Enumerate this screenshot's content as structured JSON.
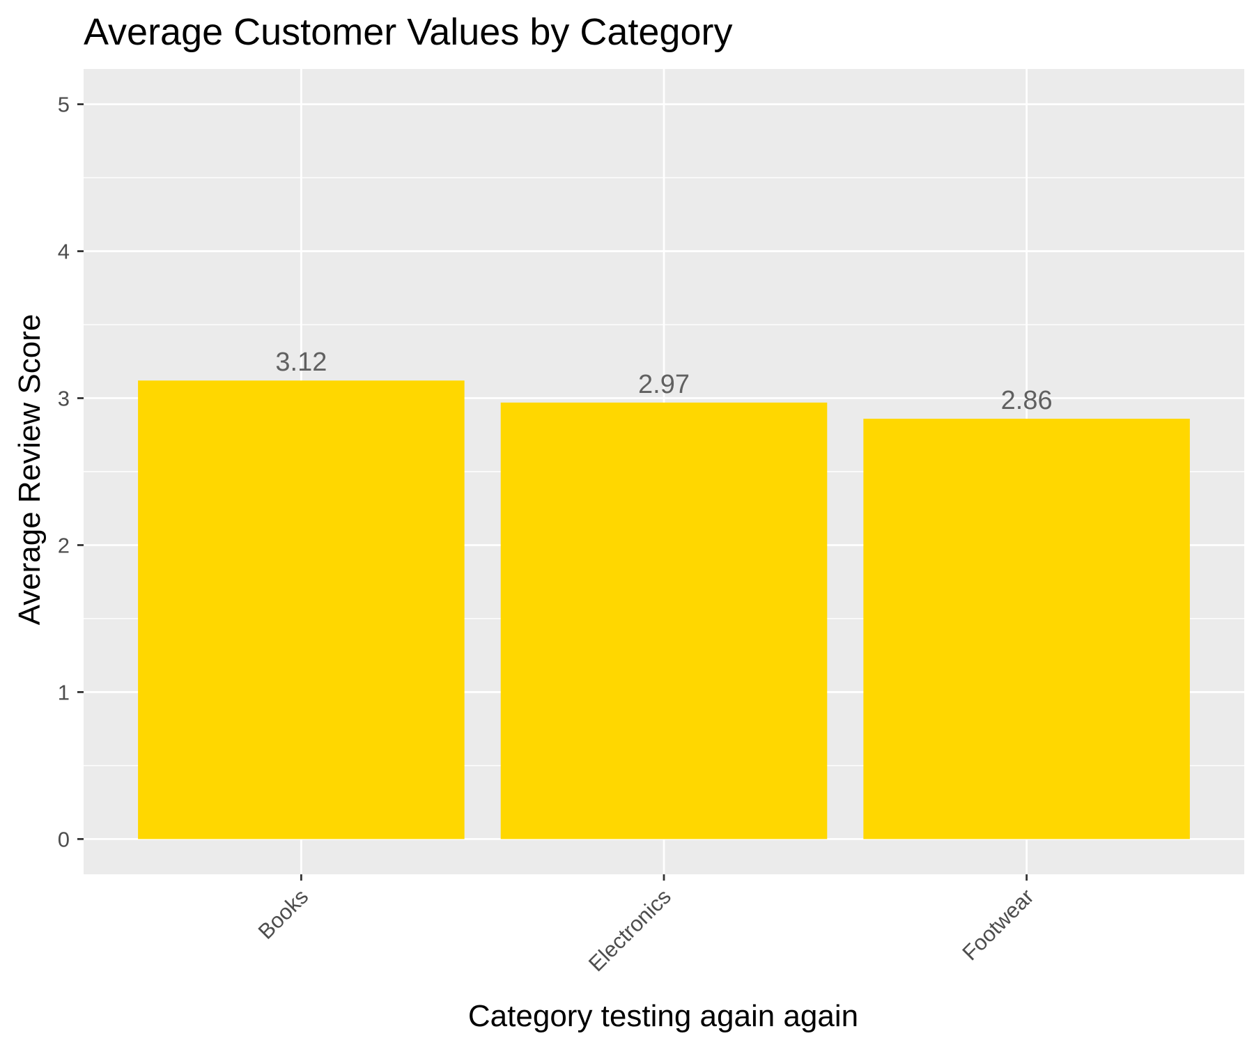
{
  "chart_data": {
    "type": "bar",
    "title": "Average Customer Values by Category",
    "xlabel": "Category testing again again",
    "ylabel": "Average Review Score",
    "categories": [
      "Books",
      "Electronics",
      "Footwear"
    ],
    "values": [
      3.12,
      2.97,
      2.86
    ],
    "value_labels": [
      "3.12",
      "2.97",
      "2.86"
    ],
    "ylim": [
      -0.24,
      5.24
    ],
    "y_ticks": [
      0,
      1,
      2,
      3,
      4,
      5
    ],
    "y_tick_labels": [
      "0",
      "1",
      "2",
      "3",
      "4",
      "5"
    ],
    "grid": true,
    "legend": "none",
    "x_tick_label_rotation_deg": -45,
    "colors": {
      "bar": "#FFD700",
      "panel_background": "#EBEBEB",
      "grid": "#FFFFFF",
      "tick": "#333333"
    }
  }
}
